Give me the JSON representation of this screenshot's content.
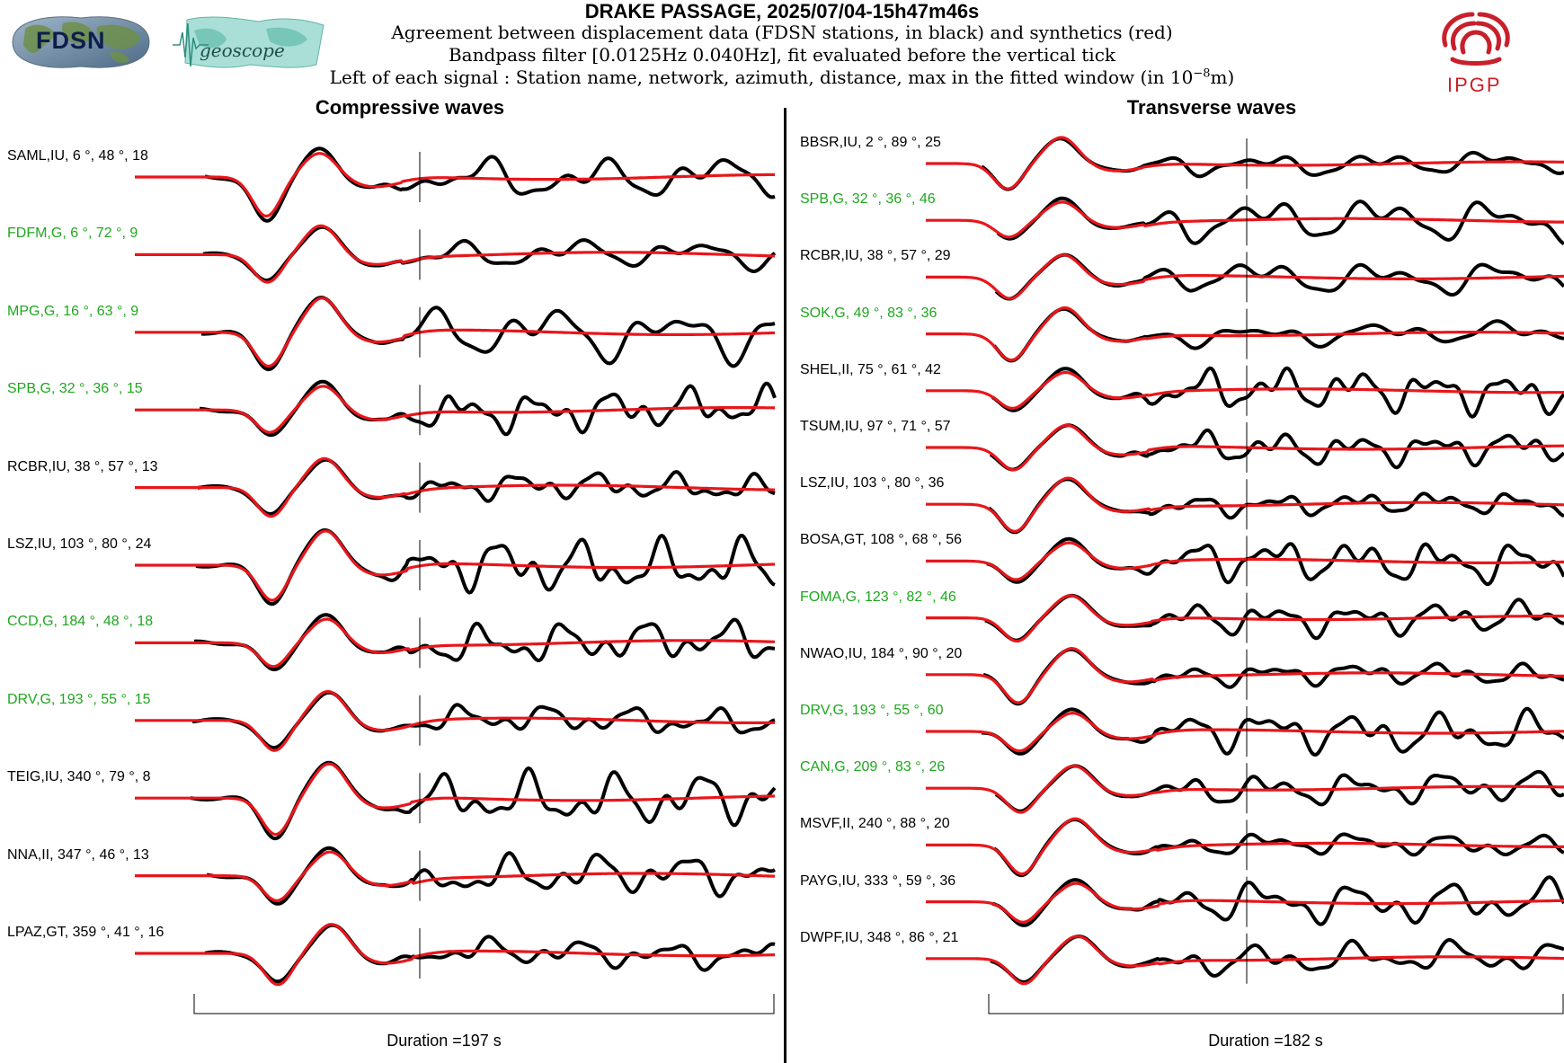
{
  "header": {
    "title": "DRAKE PASSAGE, 2025/07/04-15h47m46s",
    "subtitle_line1": "Agreement between displacement data (FDSN stations, in black) and synthetics (red)",
    "subtitle_line2": "Bandpass filter [0.0125Hz 0.040Hz], fit evaluated before the vertical tick",
    "subtitle_line3_prefix": "Left of each signal : Station name, network, azimuth, distance, max in the fitted window (in 10",
    "subtitle_line3_exp": "−8",
    "subtitle_line3_suffix": "m)"
  },
  "logos": {
    "fdsn_text": "FDSN",
    "geoscope_text": "geoscope",
    "ipgp_text": "IPGP"
  },
  "colors": {
    "data": "#000000",
    "synthetic": "#e8161b",
    "geoscope_label": "#1ea71e",
    "other_label": "#000000"
  },
  "chart_data": [
    {
      "type": "line",
      "title": "Compressive waves",
      "duration_label": "Duration =197 s",
      "duration_s": 197,
      "stations": [
        {
          "label": "SAML,IU, 6 °, 48 °, 18",
          "network_group": "other"
        },
        {
          "label": "FDFM,G, 6 °, 72 °, 9",
          "network_group": "geoscope"
        },
        {
          "label": "MPG,G, 16 °, 63 °, 9",
          "network_group": "geoscope"
        },
        {
          "label": "SPB,G, 32 °, 36 °, 15",
          "network_group": "geoscope"
        },
        {
          "label": "RCBR,IU, 38 °, 57 °, 13",
          "network_group": "other"
        },
        {
          "label": "LSZ,IU, 103 °, 80 °, 24",
          "network_group": "other"
        },
        {
          "label": "CCD,G, 184 °, 48 °, 18",
          "network_group": "geoscope"
        },
        {
          "label": "DRV,G, 193 °, 55 °, 15",
          "network_group": "geoscope"
        },
        {
          "label": "TEIG,IU, 340 °, 79 °, 8",
          "network_group": "other"
        },
        {
          "label": "NNA,II, 347 °, 46 °, 13",
          "network_group": "other"
        },
        {
          "label": "LPAZ,GT, 359 °, 41 °, 16",
          "network_group": "other"
        }
      ]
    },
    {
      "type": "line",
      "title": "Transverse waves",
      "duration_label": "Duration =182 s",
      "duration_s": 182,
      "stations": [
        {
          "label": "BBSR,IU, 2 °, 89 °, 25",
          "network_group": "other"
        },
        {
          "label": "SPB,G, 32 °, 36 °, 46",
          "network_group": "geoscope"
        },
        {
          "label": "RCBR,IU, 38 °, 57 °, 29",
          "network_group": "other"
        },
        {
          "label": "SOK,G, 49 °, 83 °, 36",
          "network_group": "geoscope"
        },
        {
          "label": "SHEL,II, 75 °, 61 °, 42",
          "network_group": "other"
        },
        {
          "label": "TSUM,IU, 97 °, 71 °, 57",
          "network_group": "other"
        },
        {
          "label": "LSZ,IU, 103 °, 80 °, 36",
          "network_group": "other"
        },
        {
          "label": "BOSA,GT, 108 °, 68 °, 56",
          "network_group": "other"
        },
        {
          "label": "FOMA,G, 123 °, 82 °, 46",
          "network_group": "geoscope"
        },
        {
          "label": "NWAO,IU, 184 °, 90 °, 20",
          "network_group": "other"
        },
        {
          "label": "DRV,G, 193 °, 55 °, 60",
          "network_group": "geoscope"
        },
        {
          "label": "CAN,G, 209 °, 83 °, 26",
          "network_group": "geoscope"
        },
        {
          "label": "MSVF,II, 240 °, 88 °, 20",
          "network_group": "other"
        },
        {
          "label": "PAYG,IU, 333 °, 59 °, 36",
          "network_group": "other"
        },
        {
          "label": "DWPF,IU, 348 °, 86 °, 21",
          "network_group": "other"
        }
      ]
    }
  ]
}
